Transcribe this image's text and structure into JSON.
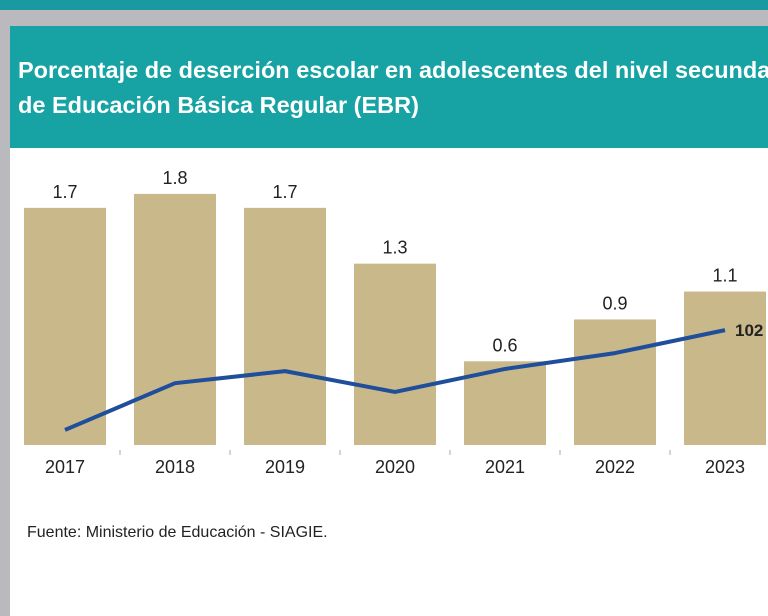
{
  "chart_data": {
    "type": "bar",
    "title": "Porcentaje de deserción escolar en adolescentes del nivel secundario de Educación Básica Regular (EBR)",
    "categories": [
      "2017",
      "2018",
      "2019",
      "2020",
      "2021",
      "2022",
      "2023"
    ],
    "series": [
      {
        "type": "bar",
        "color": "#c8b88a",
        "values": [
          1.7,
          1.8,
          1.7,
          1.3,
          0.6,
          0.9,
          1.1
        ]
      },
      {
        "type": "line",
        "color": "#1f4e9a",
        "axis": "y2",
        "values": [
          65.5,
          82.6,
          87,
          79.4,
          87.8,
          93.6,
          102
        ],
        "value_labels": [
          null,
          null,
          null,
          null,
          null,
          null,
          "102"
        ]
      }
    ],
    "ylim": [
      0,
      2
    ],
    "y2lim": [
      60,
      162
    ],
    "source": "Fuente: Ministerio de Educación - SIAGIE."
  }
}
